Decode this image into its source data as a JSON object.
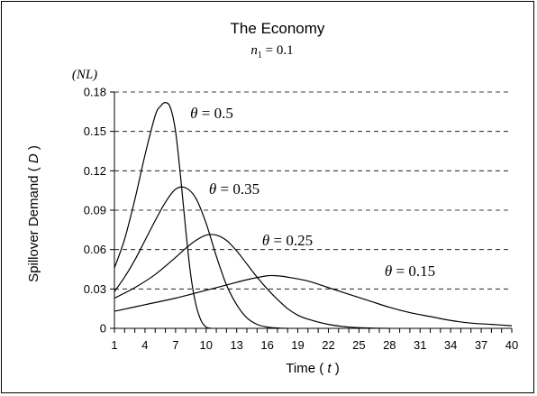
{
  "chart_data": {
    "type": "line",
    "title": "The Economy",
    "subtitle": {
      "var": "n",
      "sub": "1",
      "rest": " = 0.1"
    },
    "unit_label": "(NL)",
    "xlabel": {
      "main": "Time ( ",
      "var": "t",
      "end": " )"
    },
    "ylabel": {
      "main": "Spillover Demand ( ",
      "var": "D",
      "end": " )"
    },
    "xlim": [
      1,
      40
    ],
    "ylim": [
      0,
      0.18
    ],
    "xticks": [
      "1",
      "4",
      "7",
      "10",
      "13",
      "16",
      "19",
      "22",
      "25",
      "28",
      "31",
      "34",
      "37",
      "40"
    ],
    "yticks": [
      "0",
      "0.03",
      "0.06",
      "0.09",
      "0.12",
      "0.15",
      "0.18"
    ],
    "grid": "horizontal dashed",
    "series": [
      {
        "name": "θ = 0.5",
        "label": {
          "var": "θ",
          "rest": " = 0.5"
        },
        "x": [
          1,
          2,
          3,
          4,
          5,
          5.5,
          6,
          6.5,
          7,
          7.5,
          8,
          8.5,
          9,
          9.5,
          10,
          10.5
        ],
        "y": [
          0.046,
          0.068,
          0.098,
          0.132,
          0.162,
          0.169,
          0.172,
          0.168,
          0.15,
          0.115,
          0.075,
          0.04,
          0.018,
          0.006,
          0.001,
          0
        ]
      },
      {
        "name": "θ = 0.35",
        "label": {
          "var": "θ",
          "rest": " = 0.35"
        },
        "x": [
          1,
          2,
          3,
          4,
          5,
          6,
          7,
          8,
          9,
          10,
          11,
          12,
          13,
          14,
          15,
          16,
          17,
          18
        ],
        "y": [
          0.028,
          0.039,
          0.052,
          0.067,
          0.082,
          0.096,
          0.106,
          0.107,
          0.099,
          0.08,
          0.055,
          0.033,
          0.018,
          0.008,
          0.003,
          0.001,
          0.0003,
          0
        ]
      },
      {
        "name": "θ = 0.25",
        "label": {
          "var": "θ",
          "rest": " = 0.25"
        },
        "x": [
          1,
          3,
          5,
          7,
          8,
          9,
          10,
          11,
          12,
          13,
          14,
          15,
          16,
          17,
          18,
          19,
          20,
          22,
          24,
          26,
          28
        ],
        "y": [
          0.023,
          0.031,
          0.041,
          0.054,
          0.061,
          0.067,
          0.071,
          0.071,
          0.067,
          0.059,
          0.049,
          0.039,
          0.03,
          0.022,
          0.015,
          0.01,
          0.007,
          0.003,
          0.001,
          0.0003,
          0
        ]
      },
      {
        "name": "θ = 0.15",
        "label": {
          "var": "θ",
          "rest": " = 0.15"
        },
        "x": [
          1,
          4,
          7,
          10,
          12,
          14,
          16,
          17,
          18,
          20,
          22,
          24,
          26,
          28,
          30,
          32,
          34,
          36,
          38,
          40
        ],
        "y": [
          0.013,
          0.018,
          0.023,
          0.029,
          0.033,
          0.037,
          0.04,
          0.04,
          0.039,
          0.036,
          0.031,
          0.026,
          0.021,
          0.016,
          0.012,
          0.009,
          0.006,
          0.004,
          0.003,
          0.002
        ]
      }
    ]
  }
}
